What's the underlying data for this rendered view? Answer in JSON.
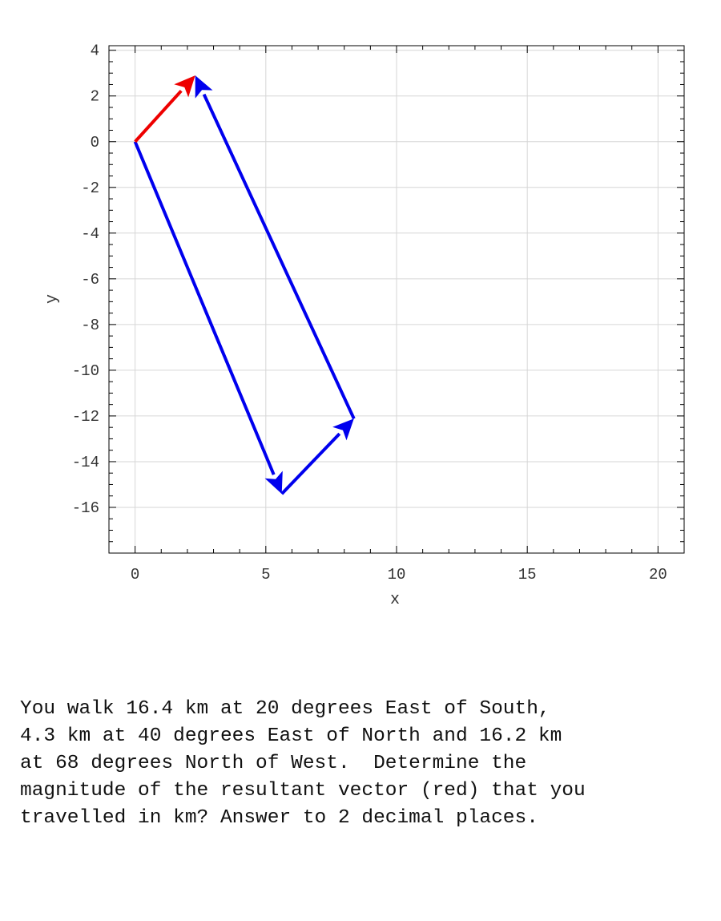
{
  "chart_data": {
    "type": "vector-plot",
    "xlabel": "x",
    "ylabel": "y",
    "xlim": [
      -1,
      21
    ],
    "ylim": [
      -18,
      4.2
    ],
    "x_ticks": [
      0,
      5,
      10,
      15,
      20
    ],
    "y_ticks": [
      4,
      2,
      0,
      -2,
      -4,
      -6,
      -8,
      -10,
      -12,
      -14,
      -16
    ],
    "grid": true,
    "vectors": [
      {
        "from": [
          0,
          0
        ],
        "to": [
          5.61,
          -15.41
        ],
        "color": "#0000ee"
      },
      {
        "from": [
          5.61,
          -15.41
        ],
        "to": [
          8.37,
          -12.12
        ],
        "color": "#0000ee"
      },
      {
        "from": [
          8.37,
          -12.12
        ],
        "to": [
          2.3,
          2.9
        ],
        "color": "#0000ee"
      },
      {
        "from": [
          0,
          0
        ],
        "to": [
          2.3,
          2.9
        ],
        "color": "#ee0000"
      }
    ]
  },
  "question": {
    "lines": [
      "You walk 16.4 km at 20 degrees East of South,",
      "4.3 km at 40 degrees East of North and 16.2 km",
      "at 68 degrees North of West.  Determine the",
      "magnitude of the resultant vector (red) that you",
      "travelled in km? Answer to 2 decimal places."
    ]
  }
}
